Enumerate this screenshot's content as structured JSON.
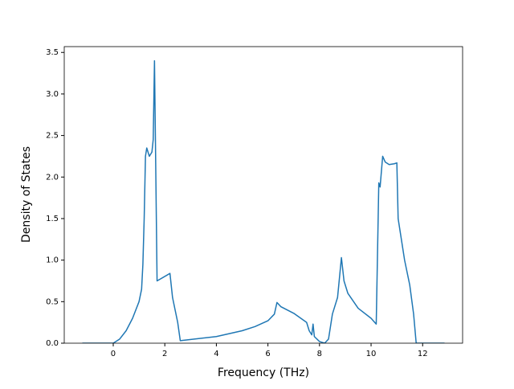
{
  "chart_data": {
    "type": "line",
    "xlabel": "Frequency (THz)",
    "ylabel": "Density of States",
    "x": [
      -1.2,
      0,
      0.25,
      0.5,
      0.75,
      1.0,
      1.1,
      1.15,
      1.2,
      1.25,
      1.3,
      1.4,
      1.5,
      1.55,
      1.6,
      1.7,
      2.2,
      2.3,
      2.5,
      2.6,
      4,
      5,
      5.5,
      6,
      6.25,
      6.35,
      6.5,
      7.0,
      7.5,
      7.6,
      7.7,
      7.75,
      7.8,
      8.0,
      8.2,
      8.35,
      8.5,
      8.7,
      8.85,
      8.95,
      9.1,
      9.5,
      10.0,
      10.2,
      10.3,
      10.35,
      10.45,
      10.55,
      10.7,
      10.9,
      11.0,
      11.05,
      11.3,
      11.5,
      11.65,
      11.75,
      12.85
    ],
    "series": [
      {
        "name": "DOS",
        "color": "#1f77b4",
        "values": [
          0,
          0,
          0.05,
          0.15,
          0.3,
          0.5,
          0.65,
          0.95,
          1.5,
          2.25,
          2.35,
          2.25,
          2.3,
          2.45,
          3.4,
          0.75,
          0.84,
          0.55,
          0.25,
          0.03,
          0.08,
          0.15,
          0.2,
          0.27,
          0.35,
          0.49,
          0.44,
          0.36,
          0.25,
          0.15,
          0.1,
          0.23,
          0.08,
          0.02,
          0.0,
          0.05,
          0.35,
          0.55,
          1.03,
          0.75,
          0.6,
          0.42,
          0.3,
          0.23,
          1.93,
          1.88,
          2.25,
          2.18,
          2.15,
          2.16,
          2.17,
          1.5,
          1.0,
          0.7,
          0.35,
          0.0,
          0
        ]
      }
    ],
    "xlim": [
      -1.9,
      13.55
    ],
    "ylim": [
      0,
      3.57
    ],
    "xticks": [
      0,
      2,
      4,
      6,
      8,
      10,
      12
    ],
    "yticks": [
      {
        "value": 0,
        "label": "0.0"
      },
      0.5,
      {
        "value": 1,
        "label": "1.0"
      },
      1.5,
      {
        "value": 2,
        "label": "2.0"
      },
      2.5,
      {
        "value": 3,
        "label": "3.0"
      },
      3.5
    ]
  }
}
